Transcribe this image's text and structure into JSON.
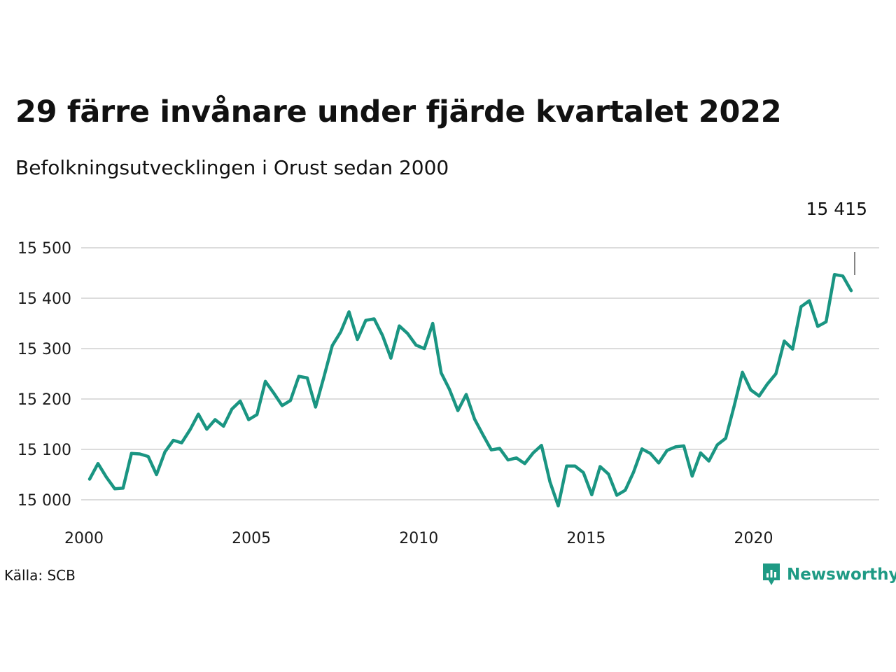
{
  "title": "29 färre invånare under fjärde kvartalet 2022",
  "subtitle": "Befolkningsutvecklingen i Orust sedan 2000",
  "source": "Källa: SCB",
  "brand": "Newsworthy",
  "colors": {
    "line": "#1a9582",
    "grid": "#dcdcdc",
    "brand": "#1e9a84"
  },
  "chart_data": {
    "type": "line",
    "title": "29 färre invånare under fjärde kvartalet 2022",
    "subtitle": "Befolkningsutvecklingen i Orust sedan 2000",
    "xlabel": "",
    "ylabel": "",
    "grid": true,
    "xlim": [
      2000,
      2023.75
    ],
    "ylim": [
      14990,
      15510
    ],
    "x_ticks": [
      2000,
      2005,
      2010,
      2015,
      2020
    ],
    "x_tick_labels": [
      "2000",
      "2005",
      "2010",
      "2015",
      "2020"
    ],
    "y_ticks": [
      15000,
      15100,
      15200,
      15300,
      15400,
      15500
    ],
    "y_tick_labels": [
      "15 000",
      "15 100",
      "15 200",
      "15 300",
      "15 400",
      "15 500"
    ],
    "end_label": "15 415",
    "series": [
      {
        "frequency": "quarterly",
        "start": "2000 Q1",
        "values": [
          15041,
          15072,
          15045,
          15022,
          15023,
          15092,
          15091,
          15086,
          15050,
          15095,
          15118,
          15113,
          15139,
          15170,
          15140,
          15159,
          15146,
          15180,
          15196,
          15159,
          15169,
          15235,
          15212,
          15187,
          15197,
          15245,
          15242,
          15184,
          15244,
          15306,
          15333,
          15373,
          15318,
          15356,
          15359,
          15326,
          15281,
          15345,
          15330,
          15307,
          15300,
          15350,
          15252,
          15219,
          15177,
          15209,
          15160,
          15129,
          15099,
          15102,
          15079,
          15083,
          15072,
          15093,
          15108,
          15036,
          14988,
          15067,
          15067,
          15054,
          15010,
          15066,
          15051,
          15009,
          15019,
          15055,
          15101,
          15092,
          15073,
          15098,
          15105,
          15107,
          15047,
          15093,
          15077,
          15109,
          15122,
          15185,
          15253,
          15218,
          15206,
          15230,
          15250,
          15315,
          15299,
          15383,
          15395,
          15344,
          15353,
          15447,
          15444,
          15415
        ]
      }
    ]
  }
}
